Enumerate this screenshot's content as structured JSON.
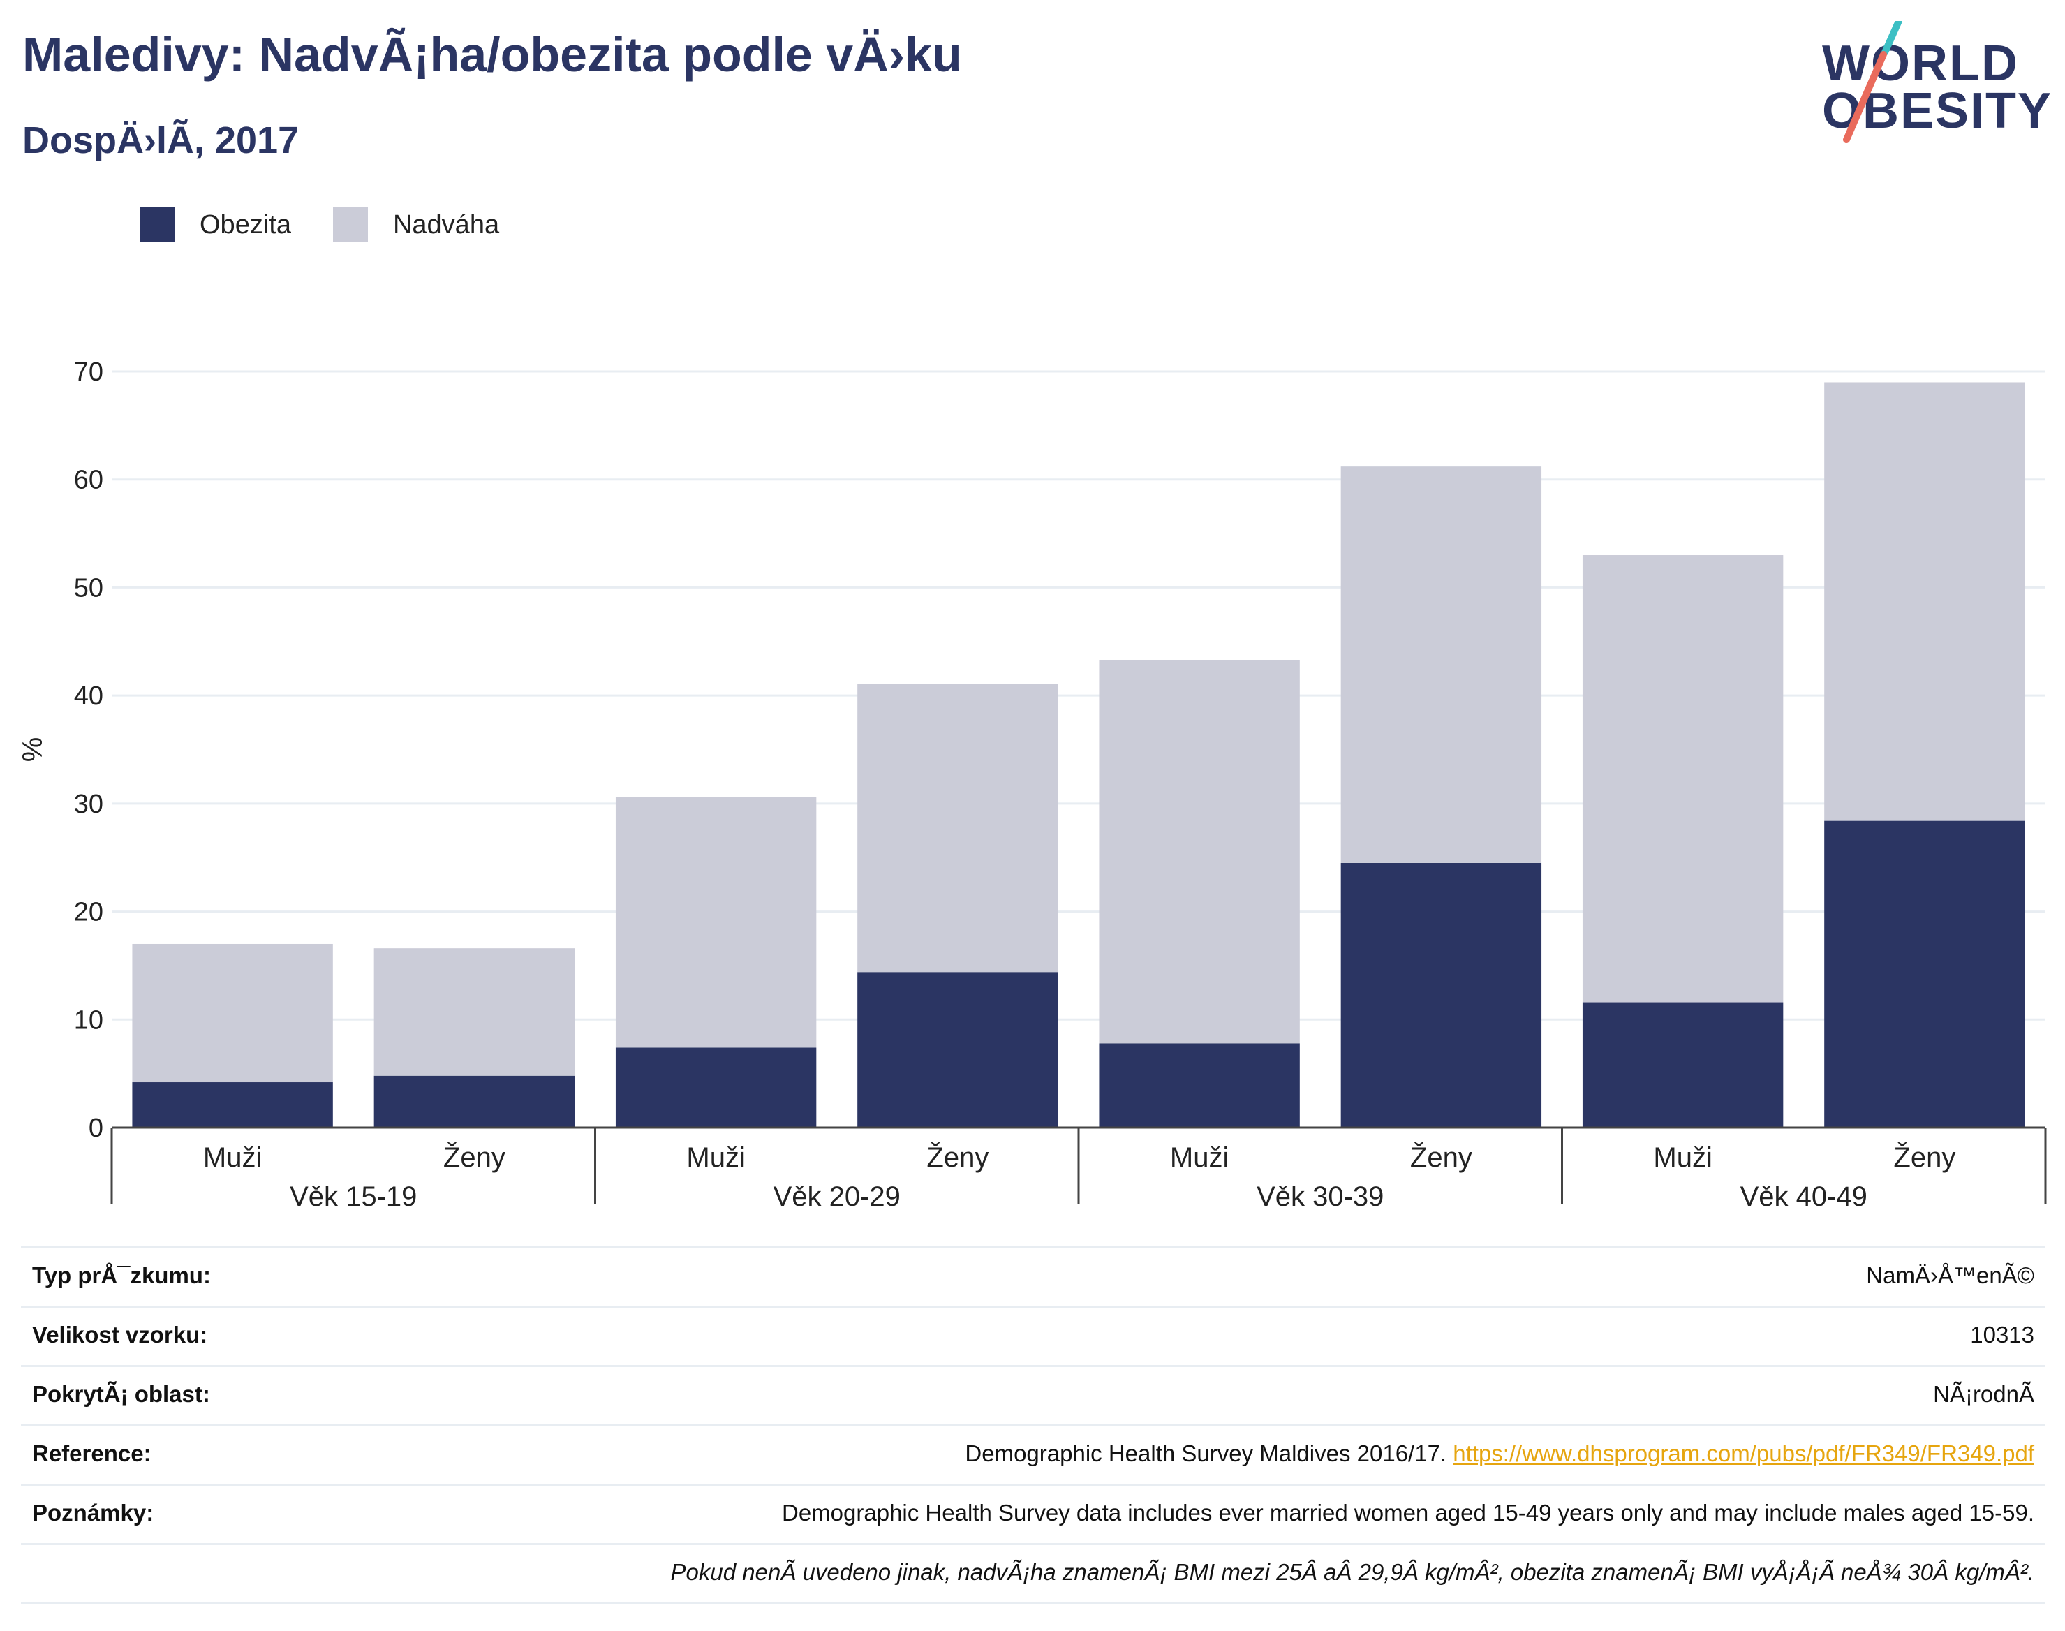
{
  "header": {
    "title": "Maledivy: NadvÃ¡ha/obezita podle vÄ›ku",
    "subtitle": "DospÄ›lÃ­, 2017"
  },
  "logo": {
    "line1": "WORLD",
    "line2": "OBESITY"
  },
  "legend": [
    {
      "label": "Obezita",
      "color": "#2b3563"
    },
    {
      "label": "Nadváha",
      "color": "#cbccd8"
    }
  ],
  "chart_data": {
    "type": "bar",
    "stacked": true,
    "ylabel": "%",
    "ylim": [
      0,
      70
    ],
    "yticks": [
      0,
      10,
      20,
      30,
      40,
      50,
      60,
      70
    ],
    "grid": true,
    "legend_position": "top-left",
    "groups": [
      "Věk 15-19",
      "Věk 20-29",
      "Věk 30-39",
      "Věk 40-49"
    ],
    "categories": [
      "Muži",
      "Ženy",
      "Muži",
      "Ženy",
      "Muži",
      "Ženy",
      "Muži",
      "Ženy"
    ],
    "series": [
      {
        "name": "Obezita",
        "color": "#2b3563",
        "values": [
          4.2,
          4.8,
          7.4,
          14.4,
          7.8,
          24.5,
          11.6,
          28.4
        ]
      },
      {
        "name": "Nadváha",
        "color": "#cbccd8",
        "values": [
          12.8,
          11.8,
          23.2,
          26.7,
          35.5,
          36.7,
          41.4,
          40.6
        ]
      }
    ]
  },
  "info": {
    "rows": [
      {
        "label": "Typ prÅ¯zkumu:",
        "value": "NamÄ›Å™enÃ©"
      },
      {
        "label": "Velikost vzorku:",
        "value": "10313"
      },
      {
        "label": "PokrytÃ¡ oblast:",
        "value": "NÃ¡rodnÃ­"
      },
      {
        "label": "Reference:",
        "value": "Demographic Health Survey Maldives 2016/17. ",
        "link": "https://www.dhsprogram.com/pubs/pdf/FR349/FR349.pdf"
      },
      {
        "label": "Poznámky:",
        "value": "Demographic Health Survey data includes ever married women aged 15-49 years only and may include males aged 15-59."
      }
    ],
    "footnote": "Pokud nenÃ­ uvedeno jinak, nadvÃ¡ha znamenÃ¡ BMI mezi 25Â aÂ 29,9Â kg/mÂ², obezita znamenÃ¡ BMI vyÅ¡Å¡Ã­ neÅ¾ 30Â kg/mÂ²."
  }
}
